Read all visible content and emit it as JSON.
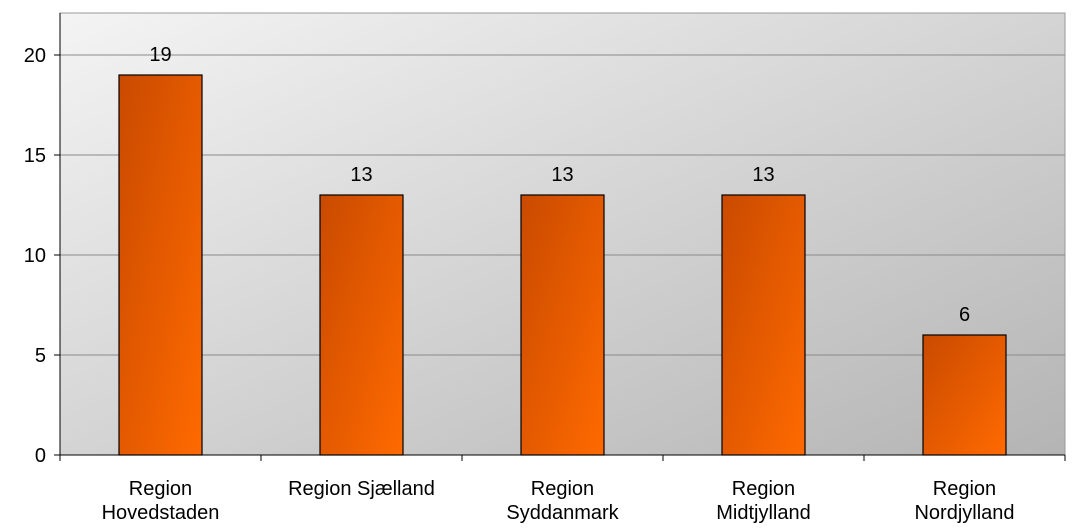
{
  "chart_data": {
    "type": "bar",
    "categories": [
      [
        "Region",
        "Hovedstaden"
      ],
      [
        "Region Sjælland"
      ],
      [
        "Region",
        "Syddanmark"
      ],
      [
        "Region",
        "Midtjylland"
      ],
      [
        "Region",
        "Nordjylland"
      ]
    ],
    "values": [
      19,
      13,
      13,
      13,
      6
    ],
    "data_labels": [
      "19",
      "13",
      "13",
      "13",
      "6"
    ],
    "yticks": [
      "0",
      "5",
      "10",
      "15",
      "20"
    ],
    "ylim": [
      0,
      20
    ],
    "grid": true,
    "legend": "none",
    "colors": {
      "bar_dark": "#c94a00",
      "bar_light": "#ff6a00",
      "bar_stroke": "#000000",
      "plot_bg_light": "#f4f4f4",
      "plot_bg_dark": "#b4b4b4",
      "grid": "#8a8a8a"
    }
  }
}
